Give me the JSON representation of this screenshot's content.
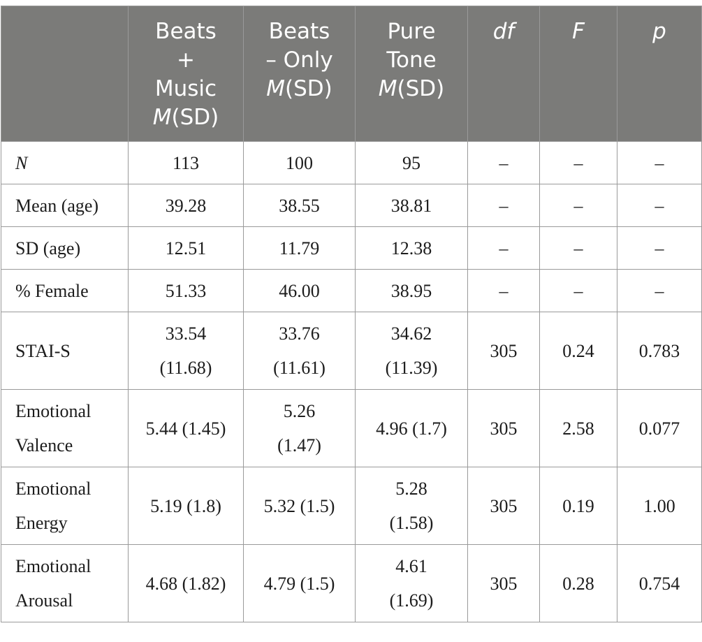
{
  "table": {
    "headers": {
      "col1": [
        "Beats",
        "+",
        "Music",
        "M(SD)"
      ],
      "col2": [
        "Beats",
        "– Only",
        "M(SD)"
      ],
      "col3": [
        "Pure",
        "Tone",
        "M(SD)"
      ],
      "df": "df",
      "F": "F",
      "p": "p"
    },
    "rows": [
      {
        "label": "N",
        "beats_music": "113",
        "beats_only": "100",
        "pure_tone": "95",
        "df": "–",
        "F": "–",
        "p": "–"
      },
      {
        "label": "Mean (age)",
        "beats_music": "39.28",
        "beats_only": "38.55",
        "pure_tone": "38.81",
        "df": "–",
        "F": "–",
        "p": "–"
      },
      {
        "label": "SD (age)",
        "beats_music": "12.51",
        "beats_only": "11.79",
        "pure_tone": "12.38",
        "df": "–",
        "F": "–",
        "p": "–"
      },
      {
        "label": "% Female",
        "beats_music": "51.33",
        "beats_only": "46.00",
        "pure_tone": "38.95",
        "df": "–",
        "F": "–",
        "p": "–"
      },
      {
        "label": "STAI-S",
        "beats_music": [
          "33.54",
          "(11.68)"
        ],
        "beats_only": [
          "33.76",
          "(11.61)"
        ],
        "pure_tone": [
          "34.62",
          "(11.39)"
        ],
        "df": "305",
        "F": "0.24",
        "p": "0.783"
      },
      {
        "label": [
          "Emotional",
          "Valence"
        ],
        "beats_music": "5.44 (1.45)",
        "beats_only": [
          "5.26",
          "(1.47)"
        ],
        "pure_tone": "4.96 (1.7)",
        "df": "305",
        "F": "2.58",
        "p": "0.077"
      },
      {
        "label": [
          "Emotional",
          "Energy"
        ],
        "beats_music": "5.19 (1.8)",
        "beats_only": "5.32 (1.5)",
        "pure_tone": [
          "5.28",
          "(1.58)"
        ],
        "df": "305",
        "F": "0.19",
        "p": "1.00"
      },
      {
        "label": [
          "Emotional",
          "Arousal"
        ],
        "beats_music": "4.68 (1.82)",
        "beats_only": "4.79 (1.5)",
        "pure_tone": [
          "4.61",
          "(1.69)"
        ],
        "df": "305",
        "F": "0.28",
        "p": "0.754"
      }
    ]
  }
}
